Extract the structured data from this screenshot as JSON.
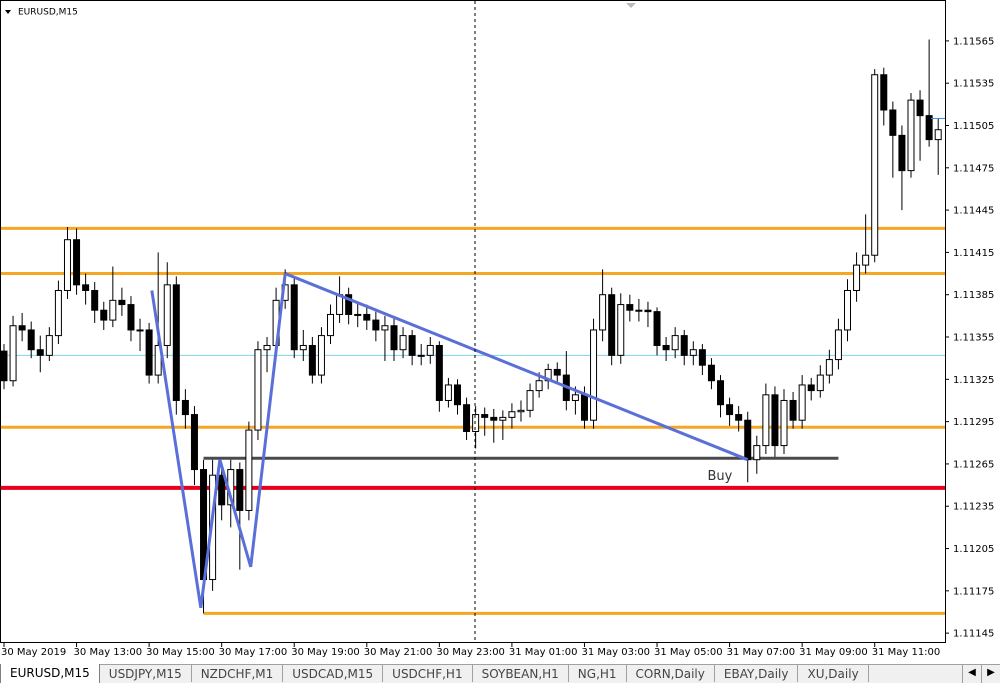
{
  "chart_data": {
    "type": "candlestick",
    "title": "EURUSD,M15",
    "xlim": [
      -0.44,
      103.75
    ],
    "ylim": [
      1.11138,
      1.11594
    ],
    "yticks": [
      1.11565,
      1.11535,
      1.11505,
      1.11475,
      1.11445,
      1.11415,
      1.11385,
      1.11355,
      1.11325,
      1.11295,
      1.11265,
      1.11235,
      1.11205,
      1.11175,
      1.11145
    ],
    "xticks": [
      {
        "value": 0,
        "label": "30 May 2019"
      },
      {
        "value": 8,
        "label": "30 May 13:00"
      },
      {
        "value": 16,
        "label": "30 May 15:00"
      },
      {
        "value": 24,
        "label": "30 May 17:00"
      },
      {
        "value": 32,
        "label": "30 May 19:00"
      },
      {
        "value": 40,
        "label": "30 May 21:00"
      },
      {
        "value": 48,
        "label": "30 May 23:00"
      },
      {
        "value": 56,
        "label": "31 May 01:00"
      },
      {
        "value": 64,
        "label": "31 May 03:00"
      },
      {
        "value": 72,
        "label": "31 May 05:00"
      },
      {
        "value": 80,
        "label": "31 May 07:00"
      },
      {
        "value": 88,
        "label": "31 May 09:00"
      },
      {
        "value": 96,
        "label": "31 May 11:00"
      }
    ],
    "ohlc": [
      [
        1.11345,
        1.1135,
        1.11318,
        1.11324
      ],
      [
        1.11324,
        1.1137,
        1.1132,
        1.11363
      ],
      [
        1.11363,
        1.11372,
        1.11352,
        1.1136
      ],
      [
        1.1136,
        1.11366,
        1.1134,
        1.11346
      ],
      [
        1.11346,
        1.11356,
        1.1133,
        1.11342
      ],
      [
        1.11342,
        1.11362,
        1.11338,
        1.11356
      ],
      [
        1.11356,
        1.11395,
        1.1135,
        1.11388
      ],
      [
        1.11388,
        1.11433,
        1.11382,
        1.11424
      ],
      [
        1.11424,
        1.11432,
        1.11385,
        1.11392
      ],
      [
        1.11392,
        1.114,
        1.11378,
        1.11388
      ],
      [
        1.11388,
        1.11394,
        1.11365,
        1.11374
      ],
      [
        1.11374,
        1.1138,
        1.1136,
        1.11367
      ],
      [
        1.11367,
        1.11405,
        1.11362,
        1.11381
      ],
      [
        1.11381,
        1.1139,
        1.1137,
        1.11378
      ],
      [
        1.11378,
        1.11384,
        1.11352,
        1.1136
      ],
      [
        1.1136,
        1.11368,
        1.11345,
        1.1136
      ],
      [
        1.1136,
        1.11365,
        1.11322,
        1.11328
      ],
      [
        1.11328,
        1.11415,
        1.11322,
        1.11349
      ],
      [
        1.11349,
        1.11408,
        1.1134,
        1.11392
      ],
      [
        1.11392,
        1.11398,
        1.113,
        1.1131
      ],
      [
        1.1131,
        1.11318,
        1.1129,
        1.113
      ],
      [
        1.113,
        1.11306,
        1.1125,
        1.11261
      ],
      [
        1.11261,
        1.11268,
        1.11159,
        1.11183
      ],
      [
        1.11183,
        1.11268,
        1.11175,
        1.11257
      ],
      [
        1.11257,
        1.11262,
        1.11225,
        1.11236
      ],
      [
        1.11236,
        1.11268,
        1.1122,
        1.11261
      ],
      [
        1.11261,
        1.11266,
        1.1119,
        1.11232
      ],
      [
        1.11232,
        1.11295,
        1.11225,
        1.11289
      ],
      [
        1.11289,
        1.11352,
        1.11282,
        1.11346
      ],
      [
        1.11346,
        1.11355,
        1.1133,
        1.11349
      ],
      [
        1.11349,
        1.1139,
        1.11342,
        1.11381
      ],
      [
        1.11381,
        1.11403,
        1.11375,
        1.11392
      ],
      [
        1.11392,
        1.11398,
        1.1134,
        1.11346
      ],
      [
        1.11346,
        1.1136,
        1.11338,
        1.11349
      ],
      [
        1.11349,
        1.11355,
        1.11322,
        1.11328
      ],
      [
        1.11328,
        1.11362,
        1.11322,
        1.11356
      ],
      [
        1.11356,
        1.11378,
        1.1135,
        1.11371
      ],
      [
        1.11371,
        1.11398,
        1.11365,
        1.11385
      ],
      [
        1.11385,
        1.1139,
        1.11364,
        1.11371
      ],
      [
        1.11371,
        1.1138,
        1.11362,
        1.11371
      ],
      [
        1.11371,
        1.11378,
        1.1136,
        1.11367
      ],
      [
        1.11367,
        1.11373,
        1.11352,
        1.1136
      ],
      [
        1.1136,
        1.1137,
        1.11338,
        1.11363
      ],
      [
        1.11363,
        1.11368,
        1.11338,
        1.11346
      ],
      [
        1.11346,
        1.11362,
        1.1134,
        1.11356
      ],
      [
        1.11356,
        1.1136,
        1.11335,
        1.11342
      ],
      [
        1.11342,
        1.1135,
        1.11335,
        1.11342
      ],
      [
        1.11342,
        1.11355,
        1.11336,
        1.11349
      ],
      [
        1.11349,
        1.11352,
        1.11302,
        1.1131
      ],
      [
        1.1131,
        1.11326,
        1.11305,
        1.11321
      ],
      [
        1.11321,
        1.11325,
        1.113,
        1.11307
      ],
      [
        1.11307,
        1.11312,
        1.11282,
        1.11288
      ],
      [
        1.11288,
        1.11306,
        1.11276,
        1.113
      ],
      [
        1.113,
        1.11305,
        1.11285,
        1.11298
      ],
      [
        1.11298,
        1.11304,
        1.1128,
        1.11296
      ],
      [
        1.11296,
        1.11303,
        1.11282,
        1.11298
      ],
      [
        1.11298,
        1.11308,
        1.1129,
        1.11302
      ],
      [
        1.11302,
        1.1131,
        1.11295,
        1.11303
      ],
      [
        1.11303,
        1.11322,
        1.11298,
        1.11317
      ],
      [
        1.11317,
        1.1133,
        1.11312,
        1.11324
      ],
      [
        1.11324,
        1.11336,
        1.11318,
        1.11332
      ],
      [
        1.11332,
        1.11337,
        1.11322,
        1.11328
      ],
      [
        1.11328,
        1.11345,
        1.11303,
        1.1131
      ],
      [
        1.1131,
        1.1132,
        1.113,
        1.11314
      ],
      [
        1.11314,
        1.1132,
        1.1129,
        1.11296
      ],
      [
        1.11296,
        1.11368,
        1.1129,
        1.1136
      ],
      [
        1.1136,
        1.11403,
        1.11352,
        1.11385
      ],
      [
        1.11385,
        1.1139,
        1.11335,
        1.11342
      ],
      [
        1.11342,
        1.11386,
        1.11336,
        1.11378
      ],
      [
        1.11378,
        1.11385,
        1.11366,
        1.11374
      ],
      [
        1.11374,
        1.11382,
        1.11366,
        1.11374
      ],
      [
        1.11374,
        1.1138,
        1.11362,
        1.11373
      ],
      [
        1.11373,
        1.11376,
        1.11342,
        1.11349
      ],
      [
        1.11349,
        1.11355,
        1.11338,
        1.11346
      ],
      [
        1.11346,
        1.11362,
        1.1134,
        1.11356
      ],
      [
        1.11356,
        1.1136,
        1.11335,
        1.11342
      ],
      [
        1.11342,
        1.11352,
        1.11335,
        1.11346
      ],
      [
        1.11346,
        1.1135,
        1.11328,
        1.11335
      ],
      [
        1.11335,
        1.1134,
        1.11318,
        1.11324
      ],
      [
        1.11324,
        1.11328,
        1.11298,
        1.11307
      ],
      [
        1.11307,
        1.11312,
        1.11292,
        1.113
      ],
      [
        1.113,
        1.11306,
        1.11288,
        1.11296
      ],
      [
        1.11296,
        1.11302,
        1.11252,
        1.11268
      ],
      [
        1.11268,
        1.11285,
        1.11258,
        1.11278
      ],
      [
        1.11278,
        1.11322,
        1.11272,
        1.11314
      ],
      [
        1.11314,
        1.1132,
        1.1127,
        1.11278
      ],
      [
        1.11278,
        1.11318,
        1.11272,
        1.1131
      ],
      [
        1.1131,
        1.11316,
        1.1129,
        1.11296
      ],
      [
        1.11296,
        1.11328,
        1.1129,
        1.11321
      ],
      [
        1.11321,
        1.11326,
        1.1131,
        1.11317
      ],
      [
        1.11317,
        1.11335,
        1.11312,
        1.11328
      ],
      [
        1.11328,
        1.11346,
        1.11322,
        1.11339
      ],
      [
        1.11339,
        1.11368,
        1.11332,
        1.1136
      ],
      [
        1.1136,
        1.11396,
        1.11352,
        1.11388
      ],
      [
        1.11388,
        1.11415,
        1.1138,
        1.11406
      ],
      [
        1.11406,
        1.11442,
        1.114,
        1.11413
      ],
      [
        1.11413,
        1.11545,
        1.11408,
        1.11541
      ],
      [
        1.11541,
        1.11546,
        1.11505,
        1.11516
      ],
      [
        1.11516,
        1.11522,
        1.11468,
        1.11498
      ],
      [
        1.11498,
        1.11505,
        1.11445,
        1.11473
      ],
      [
        1.11473,
        1.11528,
        1.11468,
        1.11523
      ],
      [
        1.11523,
        1.1153,
        1.1148,
        1.11512
      ],
      [
        1.11512,
        1.11566,
        1.1149,
        1.11495
      ],
      [
        1.11495,
        1.1151,
        1.1147,
        1.11502
      ]
    ],
    "hlines": [
      {
        "price": 1.11432,
        "color": "#f5a623"
      },
      {
        "price": 1.114,
        "color": "#f5a623"
      },
      {
        "price": 1.11342,
        "color": "#7fd3e6"
      },
      {
        "price": 1.11291,
        "color": "#f5a623"
      },
      {
        "price": 1.11269,
        "color": "#4a4a4a",
        "start": 22,
        "end": 92
      },
      {
        "price": 1.11248,
        "color": "#e8001c"
      },
      {
        "price": 1.11159,
        "color": "#f5a623",
        "start": 22
      }
    ],
    "trendlines": [
      {
        "color": "#5b6fd9",
        "x": [
          16.3,
          21.7,
          23.8,
          27.2,
          31.0
        ],
        "y": [
          1.11388,
          1.11163,
          1.11268,
          1.11192,
          1.114
        ]
      },
      {
        "color": "#5b6fd9",
        "x": [
          31.0,
          82.0
        ],
        "y": [
          1.114,
          1.11268
        ]
      }
    ],
    "annotations": [
      {
        "text": "Buy",
        "x": 80.3,
        "y": 1.11262
      }
    ]
  },
  "tabs": [
    "EURUSD,M15",
    "USDJPY,M15",
    "NZDCHF,M1",
    "USDCAD,M15",
    "USDCHF,H1",
    "SOYBEAN,H1",
    "NG,H1",
    "CORN,Daily",
    "EBAY,Daily",
    "XU,Daily"
  ],
  "active_tab": 0
}
